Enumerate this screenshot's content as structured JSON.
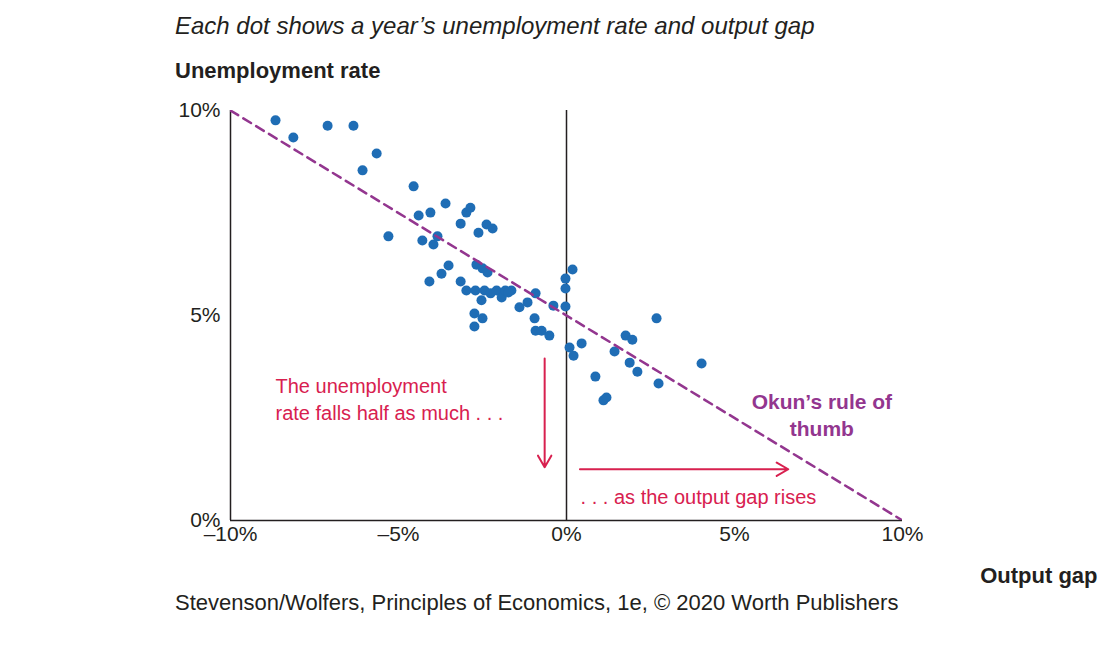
{
  "chart_data": {
    "type": "scatter",
    "subtitle": "Each dot shows a year’s unemployment rate and output gap",
    "y_label": "Unemployment rate",
    "x_label": "Output gap",
    "caption": "Stevenson/Wolfers, Principles of Economics, 1e, © 2020 Worth Publishers",
    "xlim": [
      -10,
      10
    ],
    "ylim": [
      0,
      10
    ],
    "xticks": [
      {
        "value": -10,
        "label": "–10%"
      },
      {
        "value": -5,
        "label": "–5%"
      },
      {
        "value": 0,
        "label": "0%"
      },
      {
        "value": 5,
        "label": "5%"
      },
      {
        "value": 10,
        "label": "10%"
      }
    ],
    "yticks": [
      {
        "value": 0,
        "label": "0%"
      },
      {
        "value": 5,
        "label": "5%"
      },
      {
        "value": 10,
        "label": "10%"
      }
    ],
    "annotations": [
      "The unemployment\nrate falls half as much . . .",
      ". . . as the output gap rises"
    ],
    "series": [
      {
        "type": "scatter",
        "marker": "circle",
        "color": "#1f6db5",
        "x": [
          -8.66,
          -8.13,
          -7.11,
          -6.34,
          -5.65,
          -6.07,
          -5.3,
          -4.55,
          -4.4,
          -4.05,
          -3.6,
          -4.29,
          -3.96,
          -3.84,
          -4.08,
          -3.72,
          -3.51,
          -3.15,
          -2.98,
          -2.86,
          -2.62,
          -2.38,
          -2.2,
          -3.15,
          -2.98,
          -2.71,
          -2.68,
          -2.5,
          -2.35,
          -2.44,
          -2.26,
          -2.74,
          -2.53,
          -2.74,
          -2.5,
          -2.08,
          -1.93,
          -1.82,
          -1.64,
          -1.73,
          -1.4,
          -1.16,
          -0.92,
          -0.95,
          -0.92,
          -0.74,
          -0.51,
          -0.39,
          -0.03,
          -0.03,
          -0.03,
          0.18,
          0.09,
          0.21,
          0.45,
          0.86,
          1.1,
          1.19,
          1.43,
          1.76,
          1.96,
          1.88,
          2.11,
          2.74,
          2.68,
          4.02
        ],
        "values": [
          9.76,
          9.34,
          9.63,
          9.63,
          8.95,
          8.54,
          6.93,
          8.15,
          7.44,
          7.51,
          7.73,
          6.83,
          6.73,
          6.93,
          5.83,
          6.02,
          6.22,
          7.24,
          7.51,
          7.63,
          7.02,
          7.22,
          7.12,
          5.83,
          5.61,
          5.61,
          6.24,
          6.15,
          6.05,
          5.61,
          5.54,
          5.05,
          5.37,
          4.73,
          4.93,
          5.61,
          5.44,
          5.61,
          5.61,
          5.56,
          5.2,
          5.32,
          5.54,
          4.93,
          4.63,
          4.63,
          4.51,
          5.24,
          5.9,
          5.66,
          5.22,
          6.12,
          4.22,
          4.02,
          4.32,
          3.51,
          2.93,
          3.0,
          4.12,
          4.51,
          4.41,
          3.85,
          3.63,
          3.34,
          4.93,
          3.83
        ]
      },
      {
        "type": "line",
        "name": "Okun’s rule of\nthumb",
        "line_style": "dashed",
        "color": "#93368f",
        "x": [
          -10,
          10
        ],
        "values": [
          10,
          0
        ]
      }
    ]
  }
}
